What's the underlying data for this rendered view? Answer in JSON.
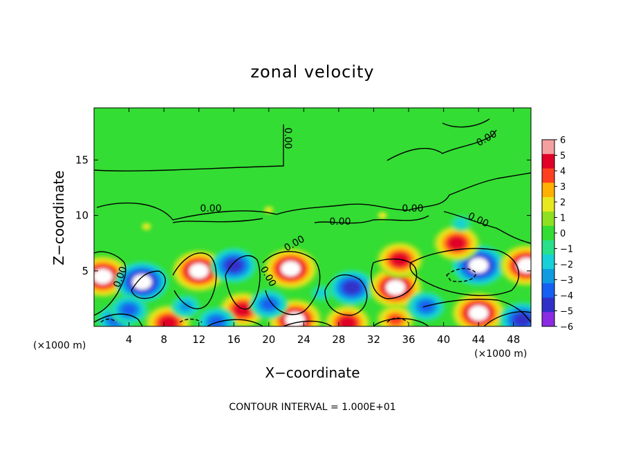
{
  "chart_data": {
    "type": "heatmap",
    "title": "zonal velocity",
    "xlabel": "X−coordinate",
    "ylabel": "Z−coordinate",
    "x_unit_left": "(×1000 m)",
    "x_unit_right": "(×1000 m)",
    "x_ticks": [
      4,
      8,
      12,
      16,
      20,
      24,
      28,
      32,
      36,
      40,
      44,
      48
    ],
    "y_ticks": [
      5,
      10,
      15
    ],
    "xlim": [
      0,
      50
    ],
    "ylim": [
      0,
      19.7
    ],
    "grid": false,
    "colorbar": {
      "ticks": [
        "6",
        "5",
        "4",
        "3",
        "2",
        "1",
        "0",
        "−1",
        "−2",
        "−3",
        "−4",
        "−5",
        "−6"
      ],
      "range": [
        -6,
        6
      ]
    },
    "contour_labels": [
      "0.00",
      "0.00",
      "0.00",
      "0.00",
      "0.00",
      "0.00",
      "0.00",
      "0.00",
      "0.00"
    ],
    "footer": "CONTOUR INTERVAL = 1.000E+01",
    "structures": [
      {
        "x": 1,
        "z": 4.5,
        "value": 6
      },
      {
        "x": 5.5,
        "z": 4,
        "value": -6
      },
      {
        "x": 12,
        "z": 5,
        "value": 6
      },
      {
        "x": 16,
        "z": 5.5,
        "value": -5
      },
      {
        "x": 22.5,
        "z": 5.2,
        "value": 6
      },
      {
        "x": 29.5,
        "z": 3.5,
        "value": -5
      },
      {
        "x": 34.5,
        "z": 3.5,
        "value": 6
      },
      {
        "x": 35,
        "z": 6,
        "value": 5
      },
      {
        "x": 44,
        "z": 5.5,
        "value": -6
      },
      {
        "x": 41.5,
        "z": 7.5,
        "value": 5
      },
      {
        "x": 44,
        "z": 1.2,
        "value": 6
      },
      {
        "x": 49.5,
        "z": 5.5,
        "value": 6
      },
      {
        "x": 49,
        "z": 0.6,
        "value": -5
      },
      {
        "x": 2.5,
        "z": 0.6,
        "value": -4
      },
      {
        "x": 8.5,
        "z": 0.3,
        "value": 5
      },
      {
        "x": 17,
        "z": 1.5,
        "value": 5
      },
      {
        "x": 23,
        "z": 0.6,
        "value": 6
      },
      {
        "x": 29,
        "z": 0.3,
        "value": 5
      },
      {
        "x": 34.5,
        "z": 0.6,
        "value": 4
      },
      {
        "x": 4,
        "z": 1.5,
        "value": -4
      },
      {
        "x": 20,
        "z": 2,
        "value": -4
      },
      {
        "x": 38,
        "z": 1.8,
        "value": -4
      },
      {
        "x": 14,
        "z": 0.4,
        "value": -4
      },
      {
        "x": 10.5,
        "z": 1.8,
        "value": -3
      },
      {
        "x": 26,
        "z": 3,
        "value": -2
      },
      {
        "x": 20,
        "z": 10.5,
        "value": 1.5
      },
      {
        "x": 33,
        "z": 10,
        "value": 1.5
      },
      {
        "x": 42,
        "z": 9.3,
        "value": -2
      },
      {
        "x": 6,
        "z": 9,
        "value": 1.5
      },
      {
        "x": 40,
        "z": 12.5,
        "value": 0.6
      },
      {
        "x": 10,
        "z": 12,
        "value": 0.4
      }
    ]
  }
}
